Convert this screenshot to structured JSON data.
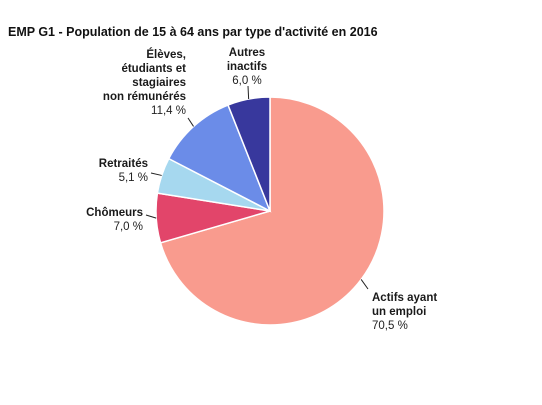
{
  "chart_data": {
    "type": "pie",
    "title": "EMP G1 - Population de 15 à 64 ans par type d'activité en 2016",
    "slices": [
      {
        "label": [
          "Actifs ayant",
          "un emploi"
        ],
        "value": 70.5,
        "value_label": "70,5 %",
        "color": "#F99B8E"
      },
      {
        "label": [
          "Chômeurs"
        ],
        "value": 7.0,
        "value_label": "7,0 %",
        "color": "#E2456A"
      },
      {
        "label": [
          "Retraités"
        ],
        "value": 5.1,
        "value_label": "5,1 %",
        "color": "#A6D8EF"
      },
      {
        "label": [
          "Élèves,",
          "étudiants et",
          "stagiaires",
          "non rémunérés"
        ],
        "value": 11.4,
        "value_label": "11,4 %",
        "color": "#6B8CE8"
      },
      {
        "label": [
          "Autres",
          "inactifs"
        ],
        "value": 6.0,
        "value_label": "6,0 %",
        "color": "#38389D"
      }
    ]
  }
}
